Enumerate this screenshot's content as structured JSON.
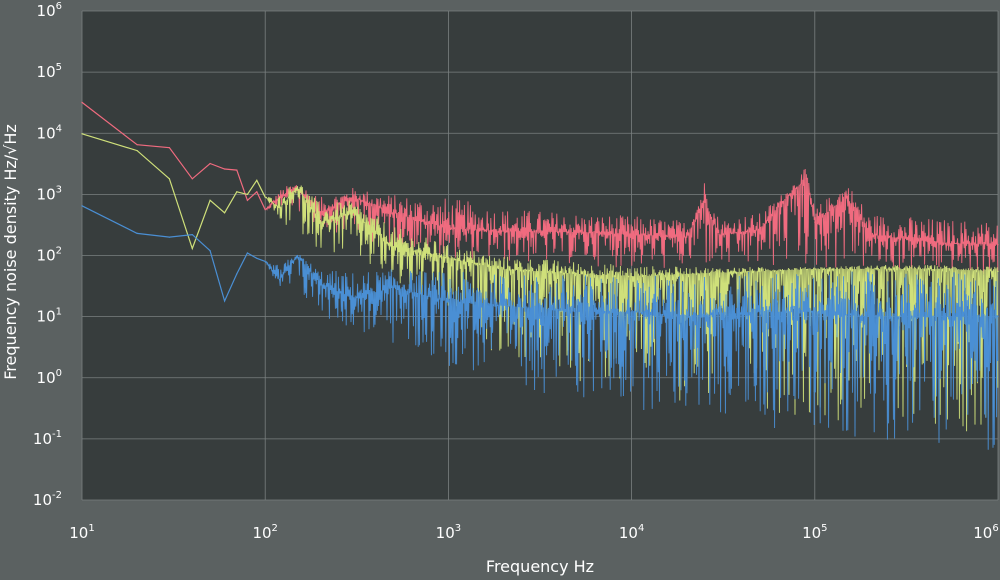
{
  "chart_data": {
    "type": "line",
    "title": "",
    "xlabel": "Frequency Hz",
    "ylabel": "Frequency noise density  Hz/√Hz",
    "xscale": "log",
    "yscale": "log",
    "xlim": [
      10,
      1000000
    ],
    "ylim": [
      0.01,
      1000000
    ],
    "grid": true,
    "legend": "none",
    "x_ticks": [
      {
        "base": "10",
        "exp": "1"
      },
      {
        "base": "10",
        "exp": "2"
      },
      {
        "base": "10",
        "exp": "3"
      },
      {
        "base": "10",
        "exp": "4"
      },
      {
        "base": "10",
        "exp": "5"
      },
      {
        "base": "10",
        "exp": "6"
      }
    ],
    "y_ticks": [
      {
        "base": "10",
        "exp": "-2"
      },
      {
        "base": "10",
        "exp": "-1"
      },
      {
        "base": "10",
        "exp": "0"
      },
      {
        "base": "10",
        "exp": "1"
      },
      {
        "base": "10",
        "exp": "2"
      },
      {
        "base": "10",
        "exp": "3"
      },
      {
        "base": "10",
        "exp": "4"
      },
      {
        "base": "10",
        "exp": "5"
      },
      {
        "base": "10",
        "exp": "6"
      }
    ],
    "colors": {
      "background": "#5b6161",
      "plot_area": "#373d3d",
      "grid": "#7a8080"
    },
    "series": [
      {
        "color": "#f06b7f",
        "x": [
          10,
          20,
          30,
          40,
          50,
          60,
          70,
          80,
          90,
          100,
          120,
          150,
          200,
          300,
          500,
          1000,
          2000,
          5000,
          10000,
          20000,
          25000,
          30000,
          50000,
          70000,
          90000,
          100000,
          150000,
          200000,
          500000,
          1000000
        ],
        "y": [
          32000,
          6500,
          5800,
          1800,
          3200,
          2600,
          2500,
          800,
          1100,
          560,
          900,
          1200,
          500,
          900,
          500,
          280,
          250,
          240,
          220,
          200,
          800,
          220,
          260,
          900,
          1800,
          350,
          900,
          220,
          160,
          150
        ],
        "y_low": [
          32000,
          6500,
          5800,
          1800,
          3200,
          2600,
          2500,
          800,
          1100,
          560,
          600,
          500,
          280,
          200,
          120,
          90,
          75,
          70,
          60,
          55,
          55,
          55,
          60,
          55,
          55,
          55,
          55,
          55,
          50,
          45
        ],
        "y_high": [
          32000,
          6500,
          5800,
          1800,
          3200,
          2600,
          2500,
          800,
          1100,
          560,
          1200,
          1700,
          900,
          1300,
          1000,
          900,
          600,
          500,
          450,
          380,
          1800,
          420,
          500,
          1200,
          2800,
          600,
          1600,
          500,
          400,
          380
        ]
      },
      {
        "color": "#cfe07a",
        "x": [
          10,
          20,
          30,
          40,
          50,
          60,
          70,
          80,
          90,
          100,
          120,
          150,
          200,
          300,
          500,
          1000,
          2000,
          5000,
          10000,
          20000,
          50000,
          100000,
          200000,
          500000,
          1000000
        ],
        "y": [
          9800,
          5200,
          1800,
          130,
          800,
          500,
          1100,
          1000,
          1700,
          900,
          600,
          1300,
          350,
          500,
          140,
          90,
          60,
          50,
          45,
          50,
          55,
          60,
          60,
          60,
          55
        ],
        "y_low": [
          9800,
          5200,
          1800,
          130,
          800,
          500,
          1100,
          1000,
          1700,
          900,
          300,
          250,
          120,
          80,
          30,
          8,
          2,
          0.8,
          0.5,
          0.4,
          0.3,
          0.2,
          0.2,
          0.15,
          0.1
        ],
        "y_high": [
          9800,
          5200,
          1800,
          130,
          800,
          500,
          1100,
          1000,
          1700,
          900,
          1000,
          1800,
          700,
          800,
          300,
          150,
          100,
          80,
          70,
          65,
          65,
          65,
          70,
          70,
          65
        ]
      },
      {
        "color": "#4a8fd4",
        "x": [
          10,
          20,
          30,
          40,
          50,
          60,
          70,
          80,
          90,
          100,
          120,
          150,
          200,
          300,
          500,
          1000,
          2000,
          5000,
          10000,
          20000,
          50000,
          100000,
          200000,
          500000,
          1000000
        ],
        "y": [
          650,
          230,
          200,
          220,
          120,
          18,
          50,
          110,
          90,
          80,
          40,
          100,
          35,
          20,
          30,
          18,
          15,
          12,
          12,
          10,
          12,
          12,
          10,
          10,
          10
        ],
        "y_low": [
          650,
          230,
          200,
          220,
          120,
          18,
          50,
          110,
          90,
          80,
          25,
          20,
          10,
          6,
          3,
          1.5,
          0.8,
          0.4,
          0.3,
          0.25,
          0.15,
          0.12,
          0.1,
          0.08,
          0.05
        ],
        "y_high": [
          650,
          230,
          200,
          220,
          120,
          18,
          50,
          110,
          90,
          80,
          70,
          110,
          60,
          55,
          60,
          55,
          50,
          50,
          50,
          50,
          55,
          55,
          55,
          55,
          50
        ]
      }
    ]
  }
}
